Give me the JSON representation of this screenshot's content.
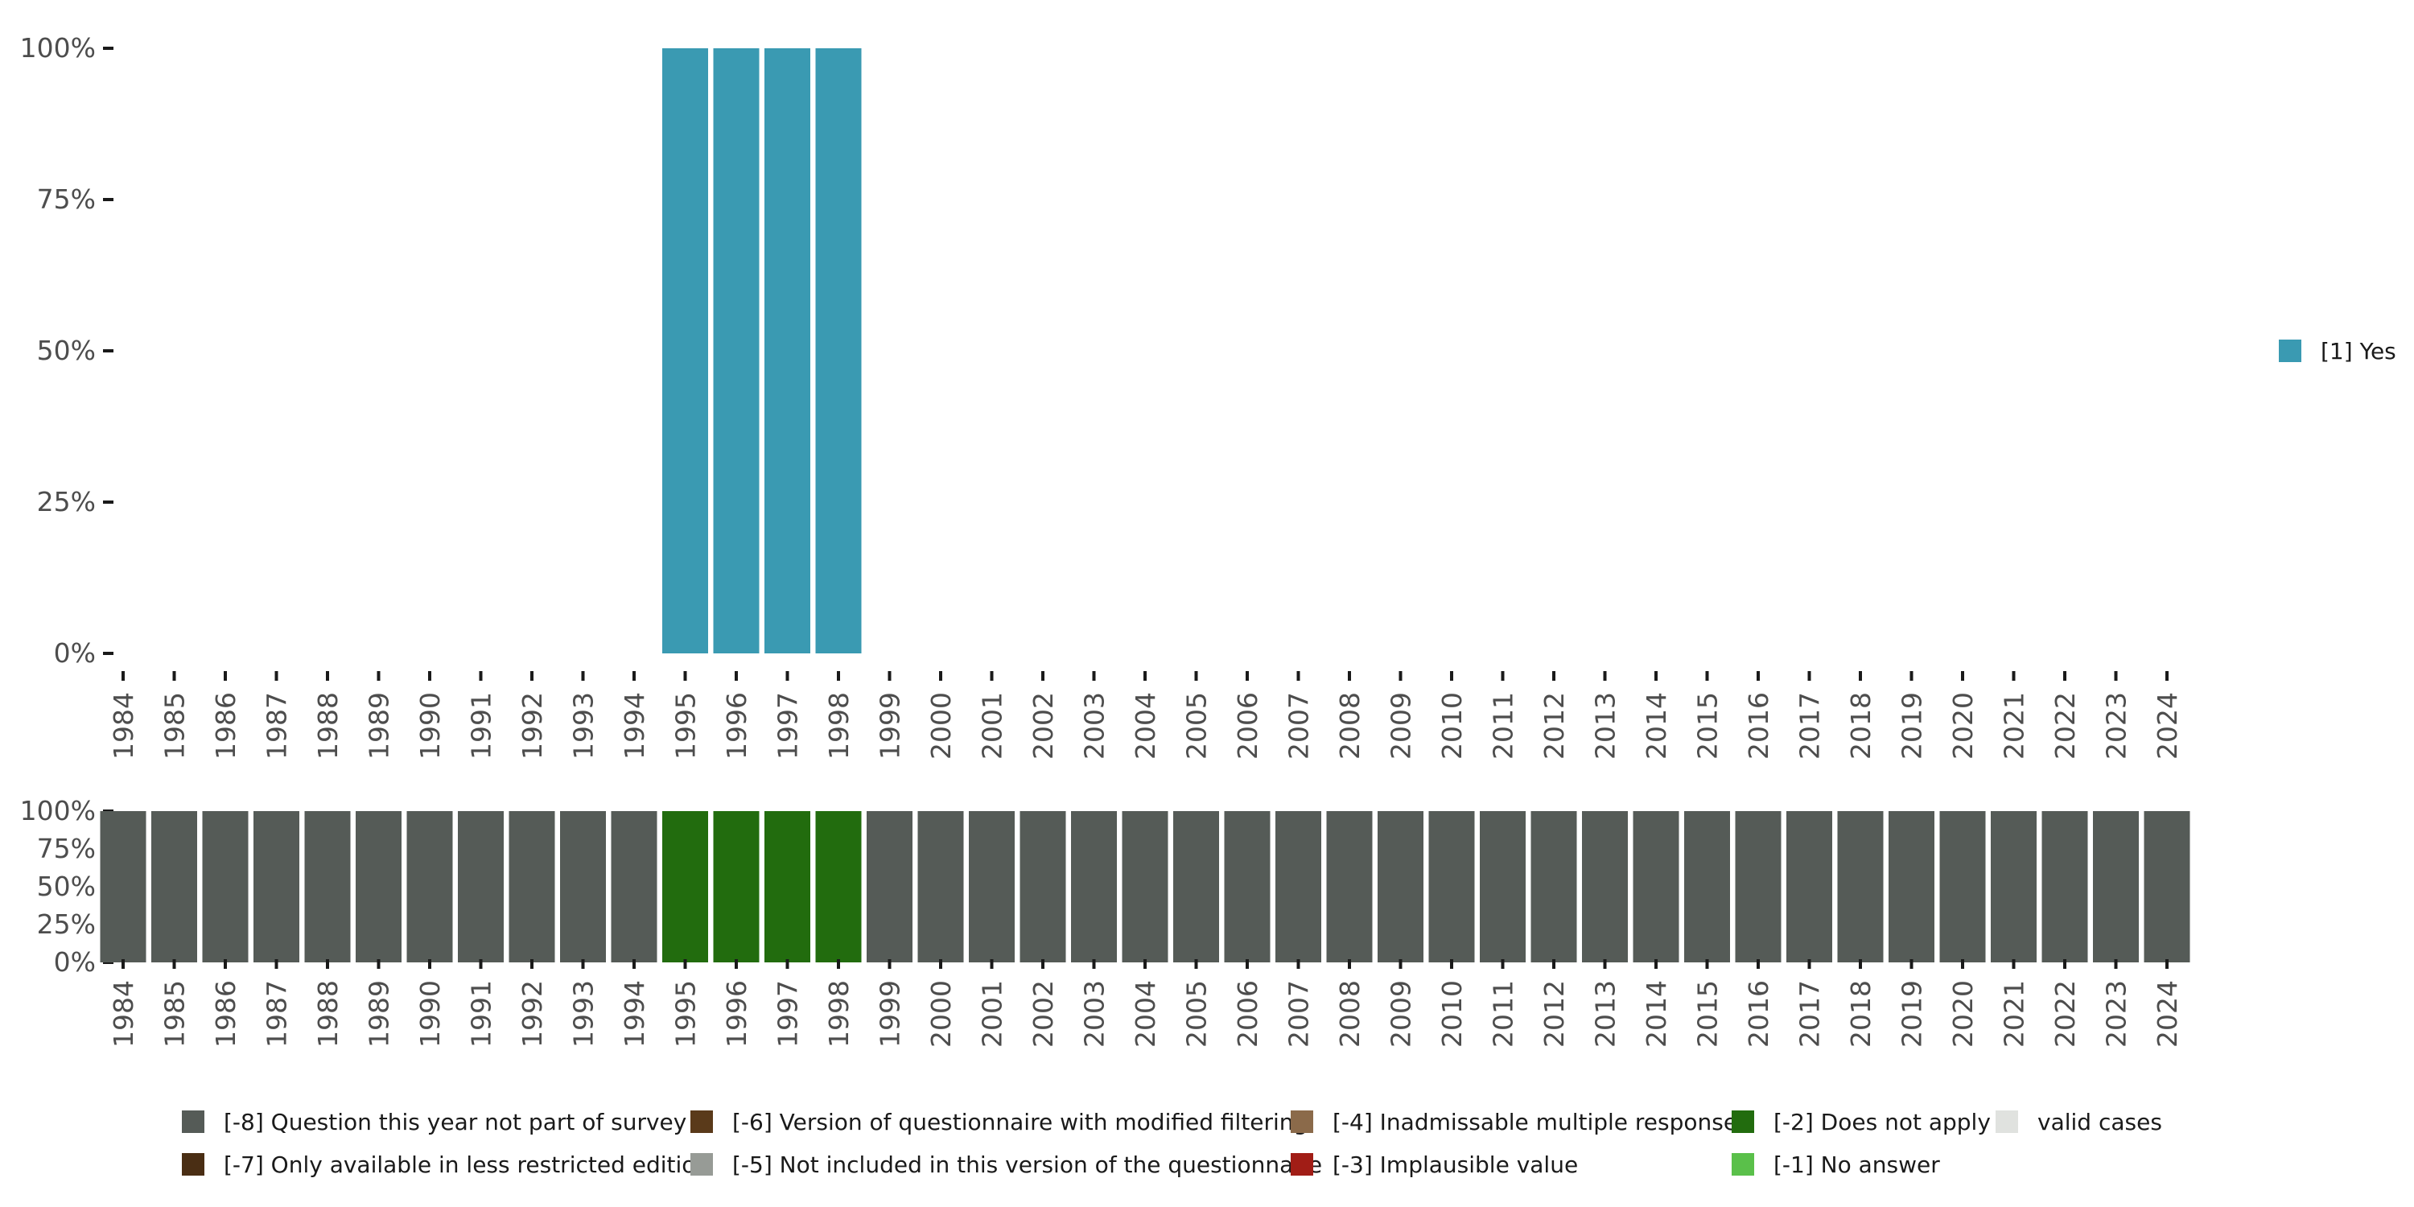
{
  "chart_data": [
    {
      "type": "bar",
      "stacked": true,
      "title": "",
      "xlabel": "",
      "ylabel": "",
      "ylim": [
        0,
        1
      ],
      "y_ticks": [
        "0%",
        "25%",
        "50%",
        "75%",
        "100%"
      ],
      "categories": [
        "1984",
        "1985",
        "1986",
        "1987",
        "1988",
        "1989",
        "1990",
        "1991",
        "1992",
        "1993",
        "1994",
        "1995",
        "1996",
        "1997",
        "1998",
        "1999",
        "2000",
        "2001",
        "2002",
        "2003",
        "2004",
        "2005",
        "2006",
        "2007",
        "2008",
        "2009",
        "2010",
        "2011",
        "2012",
        "2013",
        "2014",
        "2015",
        "2016",
        "2017",
        "2018",
        "2019",
        "2020",
        "2021",
        "2022",
        "2023",
        "2024"
      ],
      "series": [
        {
          "name": "[1] Yes",
          "color": "#3a9ab2",
          "values": [
            0,
            0,
            0,
            0,
            0,
            0,
            0,
            0,
            0,
            0,
            0,
            1,
            1,
            1,
            1,
            0,
            0,
            0,
            0,
            0,
            0,
            0,
            0,
            0,
            0,
            0,
            0,
            0,
            0,
            0,
            0,
            0,
            0,
            0,
            0,
            0,
            0,
            0,
            0,
            0,
            0
          ]
        }
      ],
      "legend": {
        "position": "right",
        "items": [
          {
            "label": "[1] Yes",
            "color": "#3a9ab2"
          }
        ]
      }
    },
    {
      "type": "bar",
      "stacked": true,
      "title": "",
      "xlabel": "",
      "ylabel": "",
      "ylim": [
        0,
        1
      ],
      "y_ticks": [
        "0%",
        "25%",
        "50%",
        "75%",
        "100%"
      ],
      "categories": [
        "1984",
        "1985",
        "1986",
        "1987",
        "1988",
        "1989",
        "1990",
        "1991",
        "1992",
        "1993",
        "1994",
        "1995",
        "1996",
        "1997",
        "1998",
        "1999",
        "2000",
        "2001",
        "2002",
        "2003",
        "2004",
        "2005",
        "2006",
        "2007",
        "2008",
        "2009",
        "2010",
        "2011",
        "2012",
        "2013",
        "2014",
        "2015",
        "2016",
        "2017",
        "2018",
        "2019",
        "2020",
        "2021",
        "2022",
        "2023",
        "2024"
      ],
      "series": [
        {
          "name": "[-8] Question this year not part of survey",
          "color": "#555b57",
          "values": [
            1,
            1,
            1,
            1,
            1,
            1,
            1,
            1,
            1,
            1,
            1,
            0,
            0,
            0,
            0,
            1,
            1,
            1,
            1,
            1,
            1,
            1,
            1,
            1,
            1,
            1,
            1,
            1,
            1,
            1,
            1,
            1,
            1,
            1,
            1,
            1,
            1,
            1,
            1,
            1,
            1
          ]
        },
        {
          "name": "[-2] Does not apply",
          "color": "#226c0e",
          "values": [
            0,
            0,
            0,
            0,
            0,
            0,
            0,
            0,
            0,
            0,
            0,
            1,
            1,
            1,
            1,
            0,
            0,
            0,
            0,
            0,
            0,
            0,
            0,
            0,
            0,
            0,
            0,
            0,
            0,
            0,
            0,
            0,
            0,
            0,
            0,
            0,
            0,
            0,
            0,
            0,
            0
          ]
        }
      ],
      "legend": {
        "position": "bottom",
        "items": [
          {
            "label": "[-8] Question this year not part of survey",
            "color": "#555b57"
          },
          {
            "label": "[-6] Version of questionnaire with modified filtering",
            "color": "#5a3a1a"
          },
          {
            "label": "[-4] Inadmissable multiple response",
            "color": "#8b6a4a"
          },
          {
            "label": "[-2] Does not apply",
            "color": "#226c0e"
          },
          {
            "label": "valid cases",
            "color": "#e0e2df"
          },
          {
            "label": "[-7] Only available in less restricted edition",
            "color": "#4a2e14"
          },
          {
            "label": "[-5] Not included in this version of the questionnaire",
            "color": "#979b96"
          },
          {
            "label": "[-3] Implausible value",
            "color": "#a11d16"
          },
          {
            "label": "[-1] No answer",
            "color": "#5ac04a"
          }
        ]
      }
    }
  ]
}
